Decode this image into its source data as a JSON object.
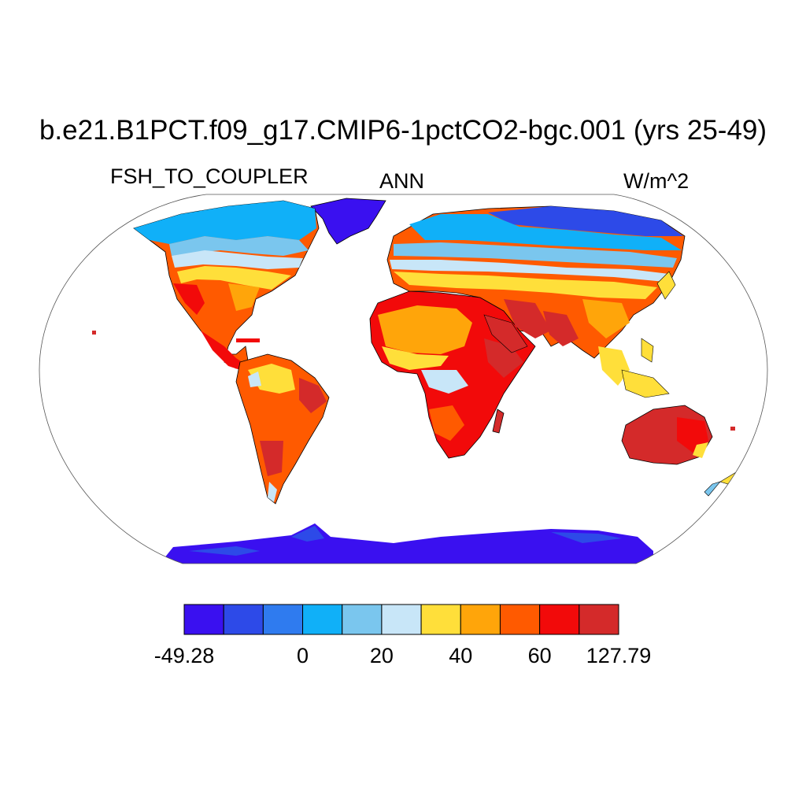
{
  "title": "b.e21.B1PCT.f09_g17.CMIP6-1pctCO2-bgc.001 (yrs 25-49)",
  "variable": "FSH_TO_COUPLER",
  "season": "ANN",
  "units": "W/m^2",
  "projection": "robinson",
  "colorbar": {
    "colors": [
      "#3a10f0",
      "#2d4ae8",
      "#2f7bef",
      "#10b0f8",
      "#7ac6ee",
      "#c8e6f8",
      "#ffdf3a",
      "#ffa50a",
      "#ff5a00",
      "#f20a0a",
      "#d42a2a"
    ],
    "labels": [
      {
        "text": "-49.28",
        "bin_edge": 0
      },
      {
        "text": "0",
        "bin_edge": 3
      },
      {
        "text": "20",
        "bin_edge": 5
      },
      {
        "text": "40",
        "bin_edge": 7
      },
      {
        "text": "60",
        "bin_edge": 9
      },
      {
        "text": "127.79",
        "bin_edge": 11
      }
    ]
  }
}
